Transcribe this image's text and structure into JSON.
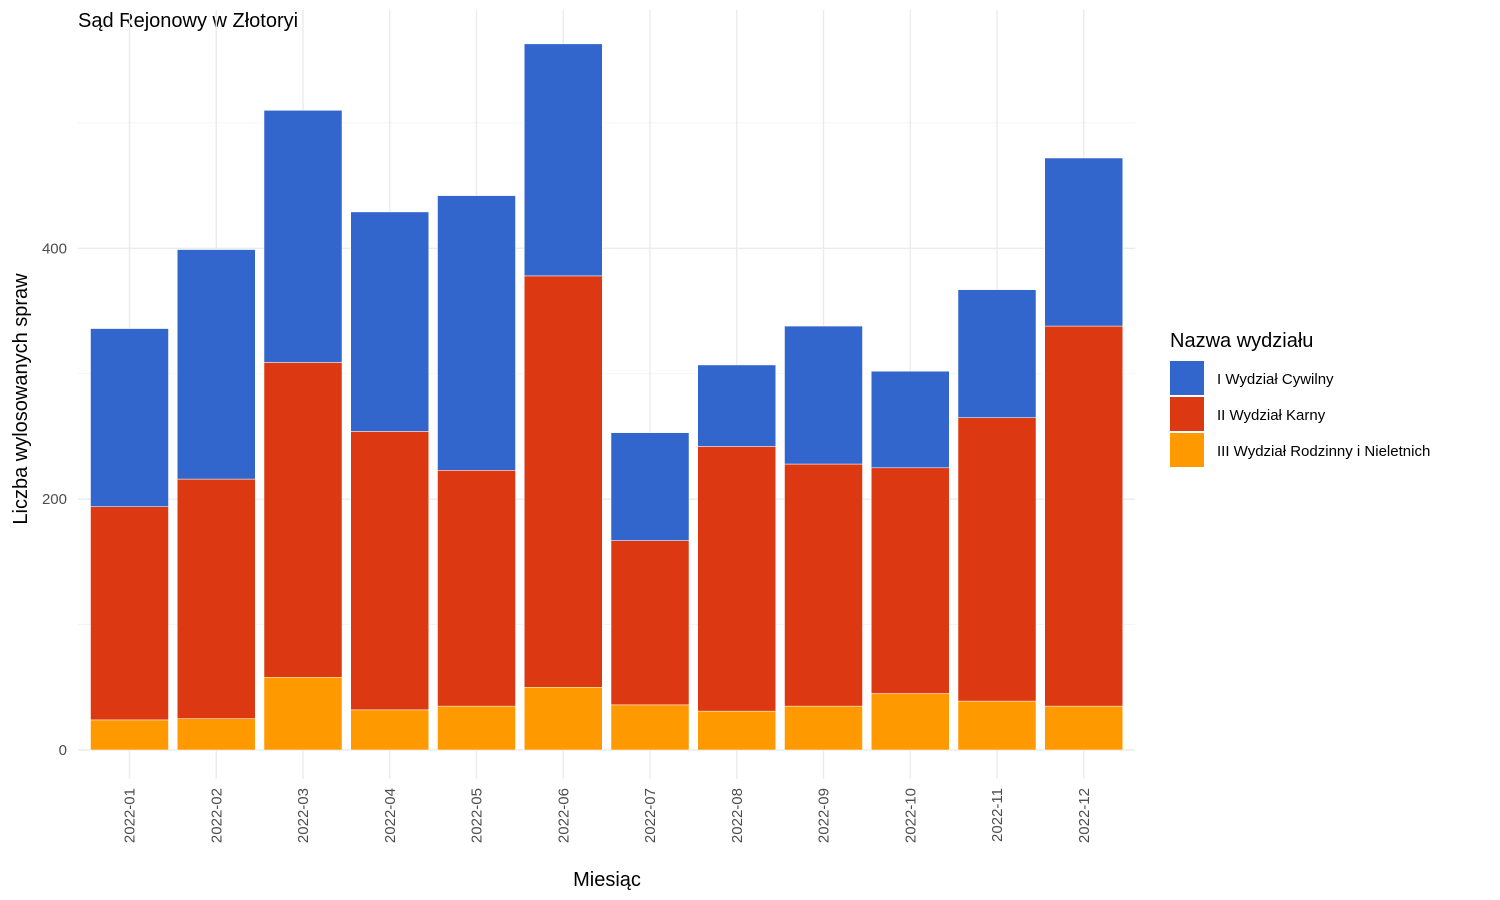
{
  "chart_data": {
    "type": "bar",
    "stacked": true,
    "title": "Sąd Rejonowy w Złotoryi",
    "xlabel": "Miesiąc",
    "ylabel": "Liczba wylosowanych spraw",
    "categories": [
      "2022-01",
      "2022-02",
      "2022-03",
      "2022-04",
      "2022-05",
      "2022-06",
      "2022-07",
      "2022-08",
      "2022-09",
      "2022-10",
      "2022-11",
      "2022-12"
    ],
    "series": [
      {
        "name": "III Wydział Rodzinny i Nieletnich",
        "color": "#ff9900",
        "values": [
          24,
          25,
          58,
          32,
          35,
          50,
          36,
          31,
          35,
          45,
          39,
          35
        ]
      },
      {
        "name": "II Wydział Karny",
        "color": "#dc3912",
        "values": [
          170,
          191,
          251,
          222,
          188,
          328,
          131,
          211,
          193,
          180,
          226,
          303
        ]
      },
      {
        "name": "I Wydział Cywilny",
        "color": "#3366cc",
        "values": [
          142,
          183,
          201,
          175,
          219,
          185,
          86,
          65,
          110,
          77,
          102,
          134
        ]
      }
    ],
    "ylim": [
      0,
      590
    ],
    "yticks": [
      0,
      200,
      400
    ],
    "y_minor_ticks": [
      100,
      300,
      500
    ],
    "grid": true,
    "legend": {
      "title": "Nazwa wydziału",
      "position": "right",
      "entries": [
        "I Wydział Cywilny",
        "II Wydział Karny",
        "III Wydział Rodzinny i Nieletnich"
      ]
    }
  }
}
